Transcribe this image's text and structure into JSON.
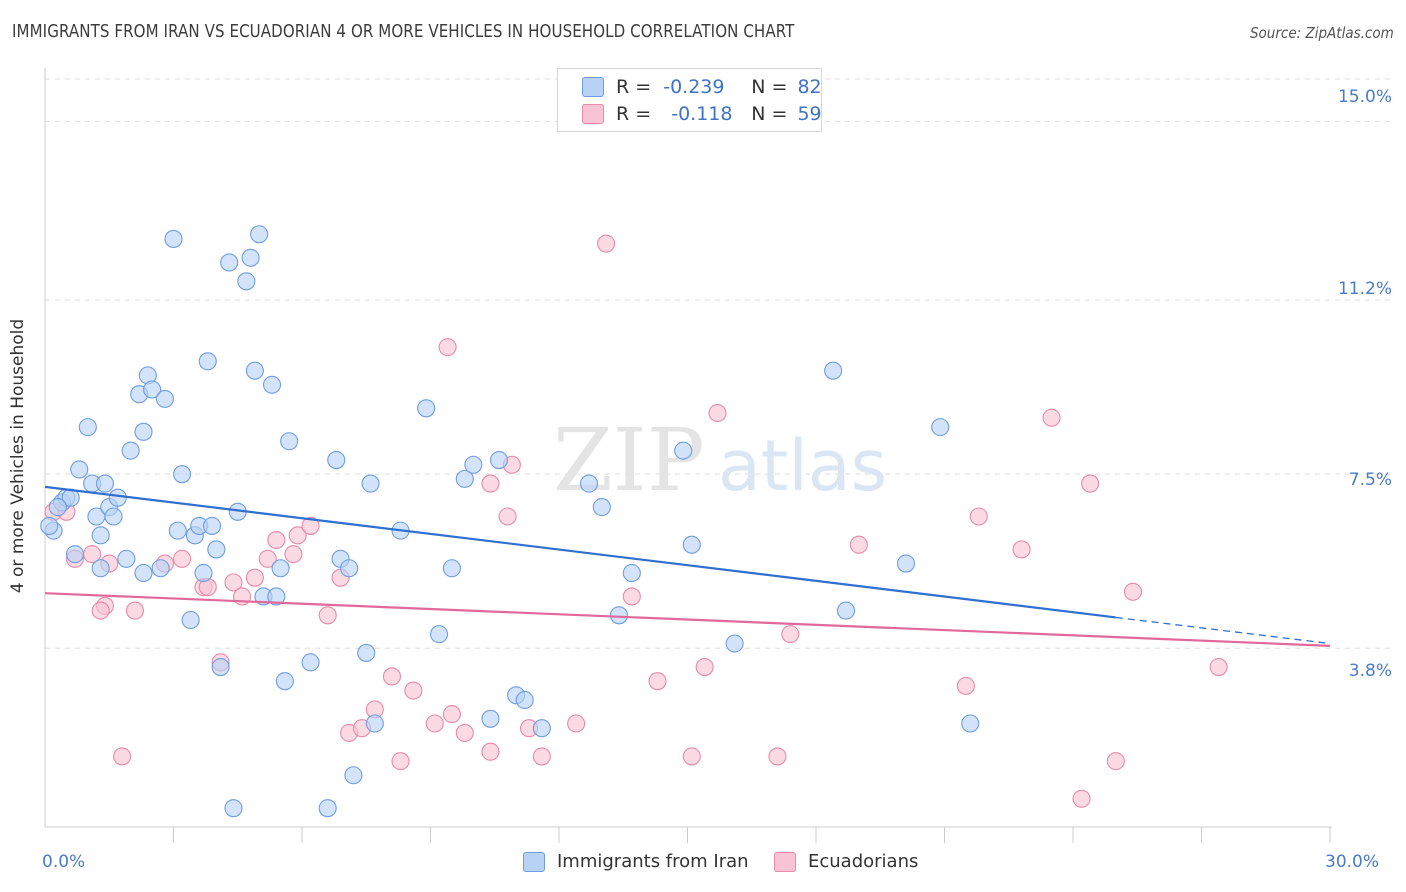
{
  "title": "IMMIGRANTS FROM IRAN VS ECUADORIAN 4 OR MORE VEHICLES IN HOUSEHOLD CORRELATION CHART",
  "source": "Source: ZipAtlas.com",
  "watermark": {
    "zip": "ZIP",
    "atlas": "atlas"
  },
  "colors": {
    "iran_fill": "#b8d2f5",
    "iran_stroke": "#6f9ee0",
    "iran_line": "#2f6fd0",
    "ecu_fill": "#f8c3d4",
    "ecu_stroke": "#e88aa9",
    "ecu_line": "#e0689a",
    "tick_text": "#4a7cc7",
    "grid": "#dddddd"
  },
  "legend": {
    "row1": {
      "r_label": "R =",
      "r_value": "-0.239",
      "n_label": "N =",
      "n_value": "82"
    },
    "row2": {
      "r_label": "R =",
      "r_value": "-0.118",
      "n_label": "N =",
      "n_value": "59"
    }
  },
  "chart_data": {
    "type": "scatter",
    "title": "IMMIGRANTS FROM IRAN VS ECUADORIAN 4 OR MORE VEHICLES IN HOUSEHOLD CORRELATION CHART",
    "xlabel": "",
    "ylabel": "4 or more Vehicles in Household",
    "xlim": [
      0,
      30
    ],
    "ylim": [
      0,
      15.9
    ],
    "x_tick_labels": [
      "0.0%",
      "30.0%"
    ],
    "y_ticks": [
      3.8,
      7.5,
      11.2,
      15.0
    ],
    "y_tick_labels": [
      "3.8%",
      "7.5%",
      "11.2%",
      "15.0%"
    ],
    "grid": true,
    "legend_position": "top-center",
    "series": [
      {
        "name": "Immigrants from Iran",
        "points": [
          [
            0.2,
            6.3
          ],
          [
            0.4,
            6.9
          ],
          [
            0.5,
            7.0
          ],
          [
            0.6,
            7.0
          ],
          [
            0.7,
            5.8
          ],
          [
            0.8,
            7.6
          ],
          [
            1.0,
            8.5
          ],
          [
            1.1,
            7.3
          ],
          [
            1.2,
            6.6
          ],
          [
            1.3,
            6.2
          ],
          [
            1.3,
            5.5
          ],
          [
            1.4,
            7.3
          ],
          [
            1.5,
            6.8
          ],
          [
            1.6,
            6.6
          ],
          [
            1.7,
            7.0
          ],
          [
            1.9,
            5.7
          ],
          [
            2.0,
            8.0
          ],
          [
            2.2,
            9.2
          ],
          [
            2.3,
            8.4
          ],
          [
            2.4,
            9.6
          ],
          [
            2.5,
            9.3
          ],
          [
            2.7,
            5.5
          ],
          [
            2.8,
            9.1
          ],
          [
            3.0,
            12.5
          ],
          [
            3.1,
            6.3
          ],
          [
            3.2,
            7.5
          ],
          [
            3.4,
            4.4
          ],
          [
            3.5,
            6.2
          ],
          [
            3.6,
            6.4
          ],
          [
            3.8,
            9.9
          ],
          [
            3.9,
            6.4
          ],
          [
            4.0,
            5.9
          ],
          [
            4.1,
            3.4
          ],
          [
            4.3,
            12.0
          ],
          [
            4.4,
            0.4
          ],
          [
            4.5,
            6.7
          ],
          [
            4.7,
            11.6
          ],
          [
            4.8,
            12.1
          ],
          [
            4.9,
            9.7
          ],
          [
            5.0,
            12.6
          ],
          [
            5.1,
            4.9
          ],
          [
            5.3,
            9.4
          ],
          [
            5.4,
            4.9
          ],
          [
            5.5,
            5.5
          ],
          [
            5.6,
            3.1
          ],
          [
            5.7,
            8.2
          ],
          [
            6.2,
            3.5
          ],
          [
            6.8,
            7.8
          ],
          [
            6.9,
            5.7
          ],
          [
            7.1,
            5.5
          ],
          [
            7.2,
            1.1
          ],
          [
            7.5,
            3.7
          ],
          [
            7.6,
            7.3
          ],
          [
            7.7,
            2.2
          ],
          [
            8.3,
            6.3
          ],
          [
            8.9,
            8.9
          ],
          [
            9.2,
            4.1
          ],
          [
            9.5,
            5.5
          ],
          [
            9.8,
            7.4
          ],
          [
            10.0,
            7.7
          ],
          [
            10.4,
            2.3
          ],
          [
            10.6,
            7.8
          ],
          [
            11.0,
            2.8
          ],
          [
            11.2,
            2.7
          ],
          [
            11.6,
            2.1
          ],
          [
            12.7,
            7.3
          ],
          [
            13.0,
            6.8
          ],
          [
            13.4,
            4.5
          ],
          [
            13.7,
            5.4
          ],
          [
            14.9,
            8.0
          ],
          [
            15.1,
            6.0
          ],
          [
            16.1,
            3.9
          ],
          [
            18.4,
            9.7
          ],
          [
            18.7,
            4.6
          ],
          [
            20.1,
            5.6
          ],
          [
            20.9,
            8.5
          ],
          [
            21.6,
            2.2
          ],
          [
            6.6,
            0.4
          ],
          [
            0.3,
            6.8
          ],
          [
            3.7,
            5.4
          ],
          [
            2.3,
            5.4
          ],
          [
            0.1,
            6.4
          ]
        ]
      },
      {
        "name": "Ecuadorians",
        "points": [
          [
            0.2,
            6.7
          ],
          [
            0.5,
            6.7
          ],
          [
            0.7,
            5.7
          ],
          [
            1.1,
            5.8
          ],
          [
            1.4,
            4.7
          ],
          [
            1.5,
            5.6
          ],
          [
            1.8,
            1.5
          ],
          [
            2.1,
            4.6
          ],
          [
            2.8,
            5.6
          ],
          [
            3.2,
            5.7
          ],
          [
            3.7,
            5.1
          ],
          [
            3.8,
            5.1
          ],
          [
            4.1,
            3.5
          ],
          [
            4.4,
            5.2
          ],
          [
            4.6,
            4.9
          ],
          [
            4.9,
            5.3
          ],
          [
            5.2,
            5.7
          ],
          [
            5.4,
            6.1
          ],
          [
            5.8,
            5.8
          ],
          [
            5.9,
            6.2
          ],
          [
            6.2,
            6.4
          ],
          [
            6.6,
            4.5
          ],
          [
            6.9,
            5.3
          ],
          [
            7.1,
            2.0
          ],
          [
            7.4,
            2.1
          ],
          [
            7.7,
            2.5
          ],
          [
            8.1,
            3.2
          ],
          [
            8.3,
            1.4
          ],
          [
            8.6,
            2.9
          ],
          [
            9.1,
            2.2
          ],
          [
            9.4,
            10.2
          ],
          [
            9.5,
            2.4
          ],
          [
            9.8,
            2.0
          ],
          [
            10.4,
            1.6
          ],
          [
            10.8,
            6.6
          ],
          [
            10.9,
            7.7
          ],
          [
            11.3,
            2.1
          ],
          [
            11.6,
            1.5
          ],
          [
            12.4,
            2.2
          ],
          [
            13.1,
            12.4
          ],
          [
            13.7,
            4.9
          ],
          [
            14.3,
            3.1
          ],
          [
            15.1,
            1.5
          ],
          [
            15.4,
            3.4
          ],
          [
            15.7,
            8.8
          ],
          [
            17.1,
            1.5
          ],
          [
            17.4,
            4.1
          ],
          [
            19.0,
            6.0
          ],
          [
            21.5,
            3.0
          ],
          [
            21.8,
            6.6
          ],
          [
            22.8,
            5.9
          ],
          [
            24.4,
            7.3
          ],
          [
            23.5,
            8.7
          ],
          [
            25.0,
            1.4
          ],
          [
            24.2,
            0.6
          ],
          [
            25.4,
            5.0
          ],
          [
            27.4,
            3.4
          ],
          [
            10.4,
            7.3
          ],
          [
            1.3,
            4.6
          ]
        ]
      }
    ],
    "trend_lines": [
      {
        "series": "Immigrants from Iran",
        "x": [
          0,
          30
        ],
        "y": [
          7.23,
          3.9
        ],
        "solid_until_x": 25.0
      },
      {
        "series": "Ecuadorians",
        "x": [
          0,
          30
        ],
        "y": [
          4.97,
          3.85
        ]
      }
    ]
  },
  "bottom_legend": {
    "item1": "Immigrants from Iran",
    "item2": "Ecuadorians"
  }
}
